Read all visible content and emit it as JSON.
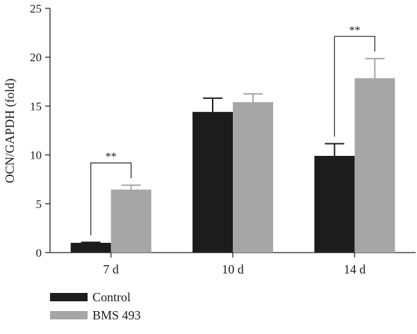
{
  "chart_data": {
    "type": "bar",
    "title": "",
    "xlabel": "",
    "ylabel": "OCN/GAPDH (fold)",
    "ylim": [
      0,
      25
    ],
    "yticks": [
      0,
      5,
      10,
      15,
      20,
      25
    ],
    "grid": false,
    "legend_position": "bottom-left",
    "categories": [
      "7 d",
      "10 d",
      "14 d"
    ],
    "series": [
      {
        "name": "Control",
        "color": "#1c1c1c",
        "values": [
          1.0,
          14.4,
          9.9
        ],
        "errors": [
          0.05,
          1.4,
          1.25
        ]
      },
      {
        "name": "BMS 493",
        "color": "#a6a6a6",
        "values": [
          6.45,
          15.4,
          17.85
        ],
        "errors": [
          0.45,
          0.85,
          2.0
        ]
      }
    ],
    "annotations": [
      {
        "category_index": 0,
        "text": "**"
      },
      {
        "category_index": 2,
        "text": "**"
      }
    ]
  }
}
